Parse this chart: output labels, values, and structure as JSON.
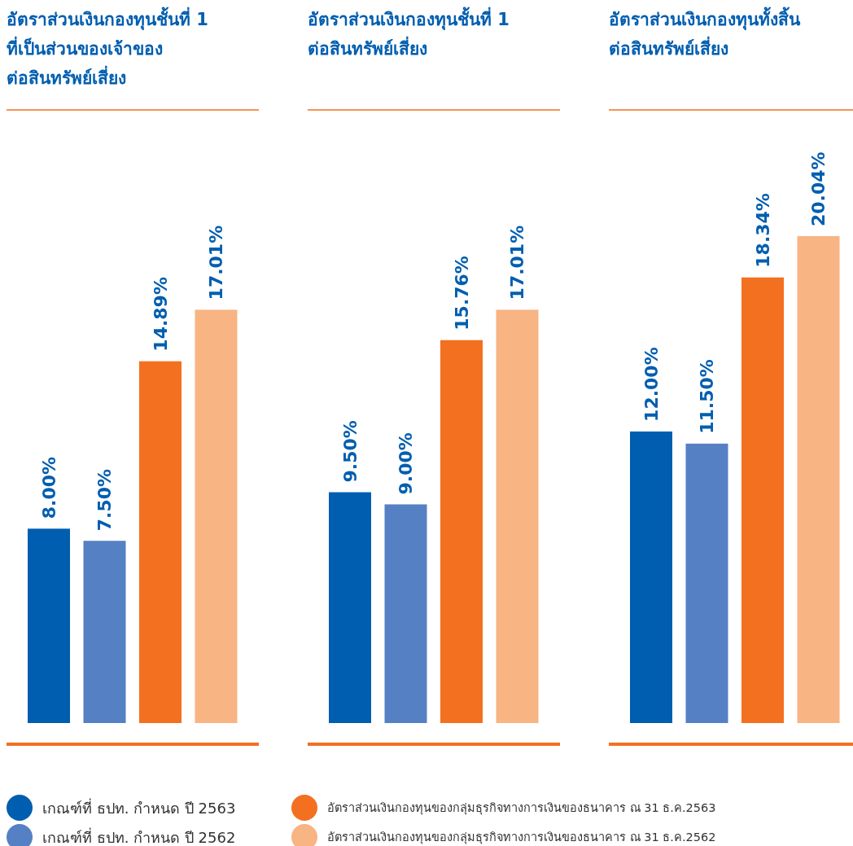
{
  "chart_data": [
    {
      "type": "bar",
      "title": "อัตราส่วนเงินกองทุนชั้นที่ 1\nที่เป็นส่วนของเจ้าของ\nต่อสินทรัพย์เสี่ยง",
      "categories": [
        null
      ],
      "legend": "bottom",
      "series": [
        {
          "name": "เกณฑ์ที่ ธปท. กำหนด ปี 2563",
          "color": "#005eb0",
          "values": [
            8.0
          ],
          "value_labels": [
            "8.00%"
          ]
        },
        {
          "name": "เกณฑ์ที่ ธปท. กำหนด ปี 2562",
          "color": "#5580c4",
          "values": [
            7.5
          ],
          "value_labels": [
            "7.50%"
          ]
        },
        {
          "name": "อัตราส่วนเงินกองทุนของกลุ่มธุรกิจทางการเงินของธนาคาร ณ 31 ธ.ค.2563",
          "color": "#f37021",
          "values": [
            14.89
          ],
          "value_labels": [
            "14.89%"
          ]
        },
        {
          "name": "อัตราส่วนเงินกองทุนของกลุ่มธุรกิจทางการเงินของธนาคาร ณ 31 ธ.ค.2562",
          "color": "#f8b483",
          "values": [
            17.01
          ],
          "value_labels": [
            "17.01%"
          ]
        }
      ]
    },
    {
      "type": "bar",
      "title": "อัตราส่วนเงินกองทุนชั้นที่ 1\nต่อสินทรัพย์เสี่ยง",
      "categories": [
        null
      ],
      "series": [
        {
          "color": "#005eb0",
          "values": [
            9.5
          ],
          "value_labels": [
            "9.50%"
          ]
        },
        {
          "color": "#5580c4",
          "values": [
            9.0
          ],
          "value_labels": [
            "9.00%"
          ]
        },
        {
          "color": "#f37021",
          "values": [
            15.76
          ],
          "value_labels": [
            "15.76%"
          ]
        },
        {
          "color": "#f8b483",
          "values": [
            17.01
          ],
          "value_labels": [
            "17.01%"
          ]
        }
      ]
    },
    {
      "type": "bar",
      "title": "อัตราส่วนเงินกองทุนทั้งสิ้น\nต่อสินทรัพย์เสี่ยง",
      "categories": [
        null
      ],
      "series": [
        {
          "color": "#005eb0",
          "values": [
            12.0
          ],
          "value_labels": [
            "12.00%"
          ]
        },
        {
          "color": "#5580c4",
          "values": [
            11.5
          ],
          "value_labels": [
            "11.50%"
          ]
        },
        {
          "color": "#f37021",
          "values": [
            18.34
          ],
          "value_labels": [
            "18.34%"
          ]
        },
        {
          "color": "#f8b483",
          "values": [
            20.04
          ],
          "value_labels": [
            "20.04%"
          ]
        }
      ]
    }
  ]
}
